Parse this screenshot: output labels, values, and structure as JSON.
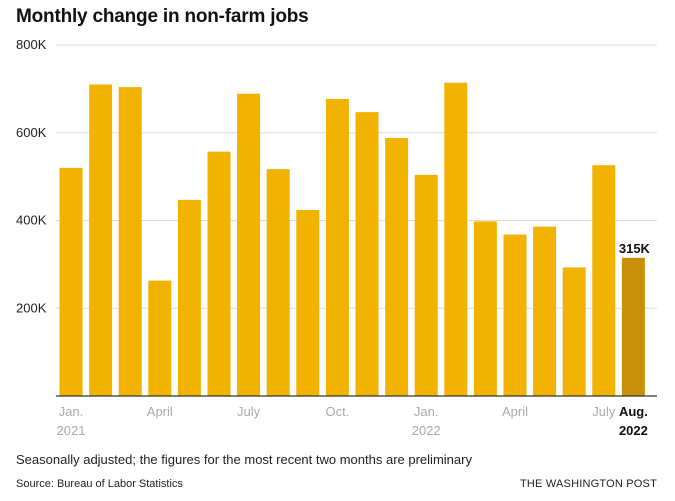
{
  "title": "Monthly change in non-farm jobs",
  "footnote": "Seasonally adjusted; the figures for the most recent two months are preliminary",
  "source": "Source: Bureau of Labor Statistics",
  "credit": "THE WASHINGTON POST",
  "colors": {
    "bar": "#f2b200",
    "highlight": "#c8900a",
    "grid": "#dddddd",
    "axis": "#333333",
    "tick": "#aaaaaa",
    "ink": "#111111"
  },
  "chart_data": {
    "type": "bar",
    "categories": [
      "Jan. 2021",
      "Feb. 2021",
      "Mar. 2021",
      "Apr. 2021",
      "May 2021",
      "Jun. 2021",
      "Jul. 2021",
      "Aug. 2021",
      "Sep. 2021",
      "Oct. 2021",
      "Nov. 2021",
      "Dec. 2021",
      "Jan. 2022",
      "Feb. 2022",
      "Mar. 2022",
      "Apr. 2022",
      "May 2022",
      "Jun. 2022",
      "Jul. 2022",
      "Aug. 2022"
    ],
    "values": [
      520000,
      710000,
      704000,
      263000,
      447000,
      557000,
      689000,
      517000,
      424000,
      677000,
      647000,
      588000,
      504000,
      714000,
      398000,
      368000,
      386000,
      293000,
      526000,
      315000
    ],
    "highlight_index": 19,
    "highlight_label": "315K",
    "ylim": [
      0,
      800000
    ],
    "yticks": [
      {
        "value": 200000,
        "label": "200K"
      },
      {
        "value": 400000,
        "label": "400K"
      },
      {
        "value": 600000,
        "label": "600K"
      },
      {
        "value": 800000,
        "label": "800K"
      }
    ],
    "xticks": [
      {
        "index": 0,
        "lines": [
          "Jan.",
          "2021"
        ],
        "bold": false
      },
      {
        "index": 3,
        "lines": [
          "April"
        ],
        "bold": false
      },
      {
        "index": 6,
        "lines": [
          "July"
        ],
        "bold": false
      },
      {
        "index": 9,
        "lines": [
          "Oct."
        ],
        "bold": false
      },
      {
        "index": 12,
        "lines": [
          "Jan.",
          "2022"
        ],
        "bold": false
      },
      {
        "index": 15,
        "lines": [
          "April"
        ],
        "bold": false
      },
      {
        "index": 18,
        "lines": [
          "July"
        ],
        "bold": false
      },
      {
        "index": 19,
        "lines": [
          "Aug.",
          "2022"
        ],
        "bold": true
      }
    ],
    "grid": true,
    "legend": "none"
  }
}
